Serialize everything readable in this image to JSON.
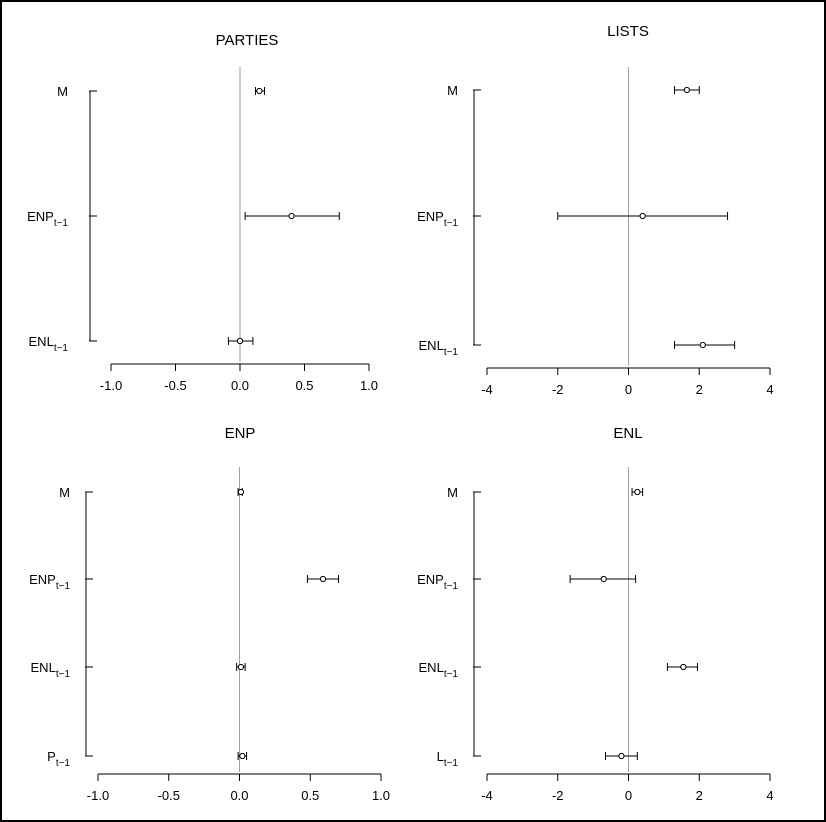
{
  "chart_data": [
    {
      "type": "coefficient-plot",
      "title": "PARTIES",
      "xlim": [
        -1.0,
        1.0
      ],
      "xticks": [
        "-1.0",
        "-0.5",
        "0.0",
        "0.5",
        "1.0"
      ],
      "rows": [
        {
          "label": "M",
          "sub": "",
          "estimate": 0.15,
          "lower": 0.12,
          "upper": 0.19
        },
        {
          "label": "ENP",
          "sub": "t−1",
          "estimate": 0.4,
          "lower": 0.04,
          "upper": 0.77
        },
        {
          "label": "ENL",
          "sub": "t−1",
          "estimate": 0.0,
          "lower": -0.09,
          "upper": 0.1
        }
      ]
    },
    {
      "type": "coefficient-plot",
      "title": "LISTS",
      "xlim": [
        -4,
        4
      ],
      "xticks": [
        "-4",
        "-2",
        "0",
        "2",
        "4"
      ],
      "rows": [
        {
          "label": "M",
          "sub": "",
          "estimate": 1.65,
          "lower": 1.3,
          "upper": 2.0
        },
        {
          "label": "ENP",
          "sub": "t−1",
          "estimate": 0.4,
          "lower": -2.0,
          "upper": 2.8
        },
        {
          "label": "ENL",
          "sub": "t−1",
          "estimate": 2.1,
          "lower": 1.3,
          "upper": 3.0
        }
      ]
    },
    {
      "type": "coefficient-plot",
      "title": "ENP",
      "xlim": [
        -1.0,
        1.0
      ],
      "xticks": [
        "-1.0",
        "-0.5",
        "0.0",
        "0.5",
        "1.0"
      ],
      "rows": [
        {
          "label": "M",
          "sub": "",
          "estimate": 0.01,
          "lower": -0.01,
          "upper": 0.02
        },
        {
          "label": "ENP",
          "sub": "t−1",
          "estimate": 0.59,
          "lower": 0.48,
          "upper": 0.7
        },
        {
          "label": "ENL",
          "sub": "t−1",
          "estimate": 0.01,
          "lower": -0.02,
          "upper": 0.04
        },
        {
          "label": "P",
          "sub": "t−1",
          "estimate": 0.02,
          "lower": -0.01,
          "upper": 0.05
        }
      ]
    },
    {
      "type": "coefficient-plot",
      "title": "ENL",
      "xlim": [
        -4,
        4
      ],
      "xticks": [
        "-4",
        "-2",
        "0",
        "2",
        "4"
      ],
      "rows": [
        {
          "label": "M",
          "sub": "",
          "estimate": 0.25,
          "lower": 0.1,
          "upper": 0.4
        },
        {
          "label": "ENP",
          "sub": "t−1",
          "estimate": -0.7,
          "lower": -1.65,
          "upper": 0.2
        },
        {
          "label": "ENL",
          "sub": "t−1",
          "estimate": 1.55,
          "lower": 1.1,
          "upper": 1.95
        },
        {
          "label": "L",
          "sub": "t−1",
          "estimate": -0.2,
          "lower": -0.65,
          "upper": 0.25
        }
      ]
    }
  ],
  "colors": {
    "zero_line": "#a0a0a0",
    "axis": "#000000",
    "point_fill": "#ffffff"
  }
}
